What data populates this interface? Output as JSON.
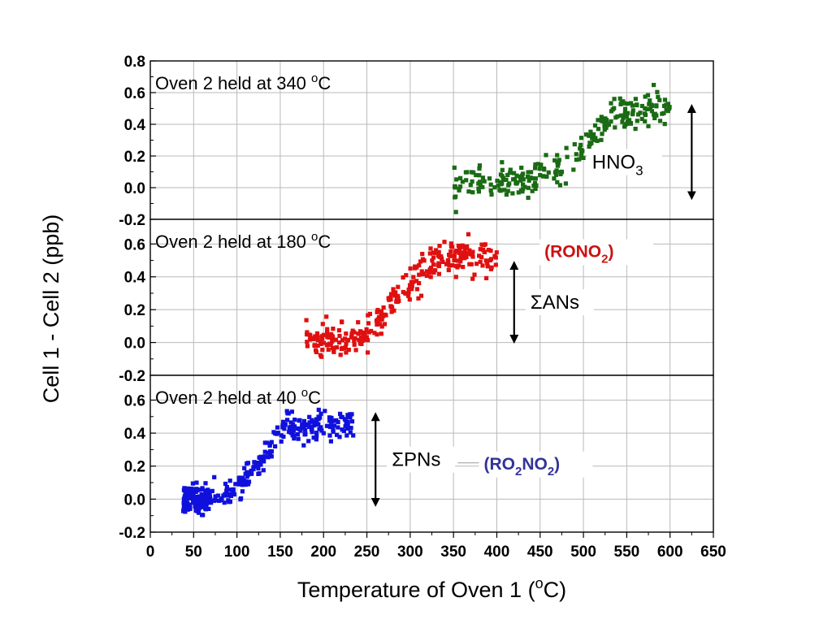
{
  "chart_data": {
    "type": "scatter",
    "xlabel": "Temperature of Oven 1 (°C)",
    "ylabel": "Cell 1 - Cell 2 (ppb)",
    "xlim": [
      0,
      650
    ],
    "x_ticks": [
      "0",
      "50",
      "100",
      "150",
      "200",
      "250",
      "300",
      "350",
      "400",
      "450",
      "500",
      "550",
      "600",
      "650"
    ],
    "grid": true,
    "panels": [
      {
        "title": "Oven 2 held at 340 °C",
        "ylim": [
          -0.2,
          0.8
        ],
        "y_ticks": [
          "-0.2",
          "0.0",
          "0.2",
          "0.4",
          "0.6",
          "0.8"
        ],
        "color": "#1a6b14",
        "annotation": {
          "label": "HNO3",
          "main": "HNO",
          "sub": "3",
          "arrow_from": 0.5,
          "arrow_to": -0.05,
          "arrow_x": 625
        },
        "species": null,
        "series": [
          {
            "name": "HNO3",
            "profile": [
              [
                350,
                0.02
              ],
              [
                420,
                0.03
              ],
              [
                450,
                0.08
              ],
              [
                490,
                0.18
              ],
              [
                510,
                0.35
              ],
              [
                540,
                0.47
              ],
              [
                600,
                0.52
              ]
            ],
            "x_range": [
              350,
              600
            ],
            "noise": 0.05,
            "n": 260
          }
        ]
      },
      {
        "title": "Oven 2 held at 180 °C",
        "ylim": [
          -0.2,
          0.75
        ],
        "y_ticks": [
          "-0.2",
          "0.0",
          "0.2",
          "0.4",
          "0.6"
        ],
        "color": "#e01010",
        "annotation": {
          "label": "ΣANs",
          "main": "ΣANs",
          "sub": "",
          "arrow_from": 0.47,
          "arrow_to": 0.02,
          "arrow_x": 420
        },
        "species": {
          "text": "(RONO",
          "sub": "2",
          "close": ")",
          "color": "#cc1111"
        },
        "series": [
          {
            "name": "ΣANs",
            "profile": [
              [
                180,
                0.0
              ],
              [
                240,
                0.01
              ],
              [
                260,
                0.1
              ],
              [
                290,
                0.3
              ],
              [
                320,
                0.47
              ],
              [
                350,
                0.52
              ],
              [
                400,
                0.52
              ]
            ],
            "x_range": [
              180,
              400
            ],
            "noise": 0.05,
            "n": 300
          }
        ]
      },
      {
        "title": "Oven 2 held at 40 °C",
        "ylim": [
          -0.2,
          0.75
        ],
        "y_ticks": [
          "-0.2",
          "0.0",
          "0.2",
          "0.4",
          "0.6"
        ],
        "color": "#1010dd",
        "annotation": {
          "label": "ΣPNs",
          "main": "ΣPNs",
          "sub": "",
          "arrow_from": 0.5,
          "arrow_to": -0.02,
          "arrow_x": 260
        },
        "species": {
          "text": "(RO",
          "sub": "2",
          "mid": "NO",
          "sub2": "2",
          "close": ")",
          "color": "#333399"
        },
        "series": [
          {
            "name": "ΣPNs",
            "profile": [
              [
                38,
                0.0
              ],
              [
                70,
                0.0
              ],
              [
                100,
                0.05
              ],
              [
                130,
                0.25
              ],
              [
                155,
                0.43
              ],
              [
                200,
                0.45
              ],
              [
                235,
                0.47
              ]
            ],
            "x_range": [
              38,
              235
            ],
            "noise": 0.04,
            "n": 420
          }
        ]
      }
    ]
  }
}
